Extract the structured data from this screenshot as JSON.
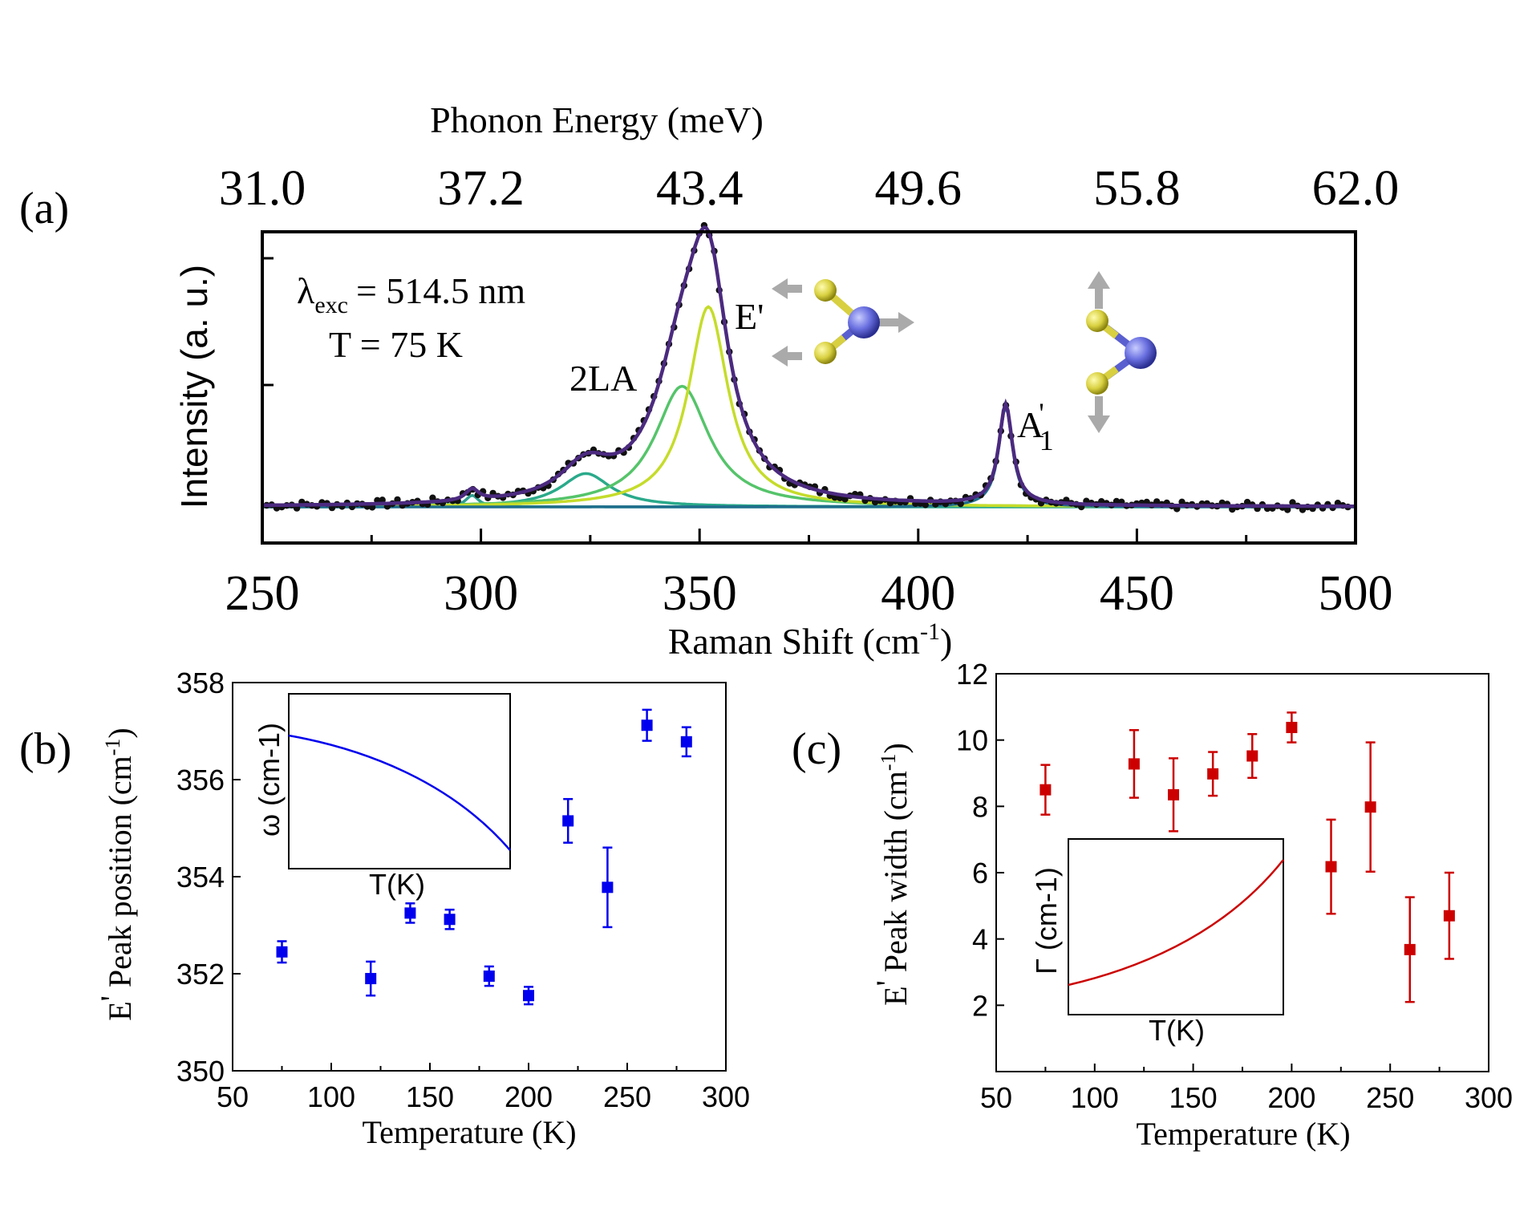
{
  "chart_data": [
    {
      "panel": "(a)",
      "type": "line",
      "xlabel": "Raman Shift (cm",
      "xlabel_sup": "-1",
      "xlabel_end": ")",
      "ylabel": "Intensity (a. u.)",
      "top_xlabel": "Phonon Energy (meV)",
      "xlim": [
        250,
        500
      ],
      "xticks": [
        "250",
        "300",
        "350",
        "400",
        "450",
        "500"
      ],
      "top_ticks": [
        "31.0",
        "37.2",
        "43.4",
        "49.6",
        "55.8",
        "62.0"
      ],
      "annotation_excitation_symbol": "λ",
      "annotation_excitation_sub": "exc",
      "annotation_excitation_value": "= 514.5 nm",
      "annotation_temperature": "T = 75 K",
      "peak_label_2la": "2LA",
      "peak_label_e": "E'",
      "peak_label_a1_base": "A",
      "peak_label_a1_prime": "'",
      "peak_label_a1_sub": "1",
      "peaks": [
        {
          "name": "small",
          "center": 298,
          "amplitude": 0.045,
          "width": 1.8,
          "color": "#2e9e8f"
        },
        {
          "name": "2LA",
          "center": 324,
          "amplitude": 0.13,
          "width": 7,
          "color": "#2aaa8a"
        },
        {
          "name": "broad",
          "center": 346,
          "amplitude": 0.47,
          "width": 7.5,
          "color": "#55c46a"
        },
        {
          "name": "E'",
          "center": 352,
          "amplitude": 0.78,
          "width": 5.5,
          "color": "#c5dc2a"
        },
        {
          "name": "A'1",
          "center": 420,
          "amplitude": 0.39,
          "width": 1.9,
          "color": "#1f6e8c"
        }
      ],
      "fit_color": "#4b2a7f",
      "data_color": "#111111"
    },
    {
      "panel": "(b)",
      "type": "scatter",
      "xlabel": "Temperature (K)",
      "ylabel_pre": "E",
      "ylabel_prime": "'",
      "ylabel_mid": " Peak position (cm",
      "ylabel_sup": "-1",
      "ylabel_end": ")",
      "xlim": [
        50,
        300
      ],
      "ylim": [
        350,
        358
      ],
      "xticks": [
        "50",
        "100",
        "150",
        "200",
        "250",
        "300"
      ],
      "yticks": [
        "350",
        "352",
        "354",
        "356",
        "358"
      ],
      "color": "#0000ee",
      "x": [
        75,
        120,
        140,
        160,
        180,
        200,
        220,
        240,
        260,
        280
      ],
      "y": [
        352.45,
        351.9,
        353.25,
        353.12,
        351.95,
        351.55,
        355.15,
        353.78,
        357.12,
        356.78
      ],
      "err": [
        0.22,
        0.35,
        0.2,
        0.2,
        0.2,
        0.18,
        0.45,
        0.82,
        0.32,
        0.3
      ],
      "inset": {
        "ylabel": "ω (cm-1)",
        "xlabel": "T(K)",
        "curve": "decreasing"
      }
    },
    {
      "panel": "(c)",
      "type": "scatter",
      "xlabel": "Temperature (K)",
      "ylabel_pre": "E",
      "ylabel_prime": "'",
      "ylabel_mid": " Peak width (cm",
      "ylabel_sup": "-1",
      "ylabel_end": ")",
      "xlim": [
        50,
        300
      ],
      "ylim": [
        0,
        12
      ],
      "xticks": [
        "50",
        "100",
        "150",
        "200",
        "250",
        "300"
      ],
      "yticks": [
        "2",
        "4",
        "6",
        "8",
        "10",
        "12"
      ],
      "color": "#cc0000",
      "x": [
        75,
        120,
        140,
        160,
        180,
        200,
        220,
        240,
        260,
        280
      ],
      "y": [
        8.5,
        9.28,
        8.35,
        8.98,
        9.52,
        10.38,
        6.18,
        7.98,
        3.68,
        4.7
      ],
      "err": [
        0.75,
        1.02,
        1.1,
        0.66,
        0.66,
        0.45,
        1.42,
        1.95,
        1.58,
        1.3
      ],
      "inset": {
        "ylabel": "Γ (cm-1)",
        "xlabel": "T(K)",
        "curve": "increasing"
      }
    }
  ]
}
